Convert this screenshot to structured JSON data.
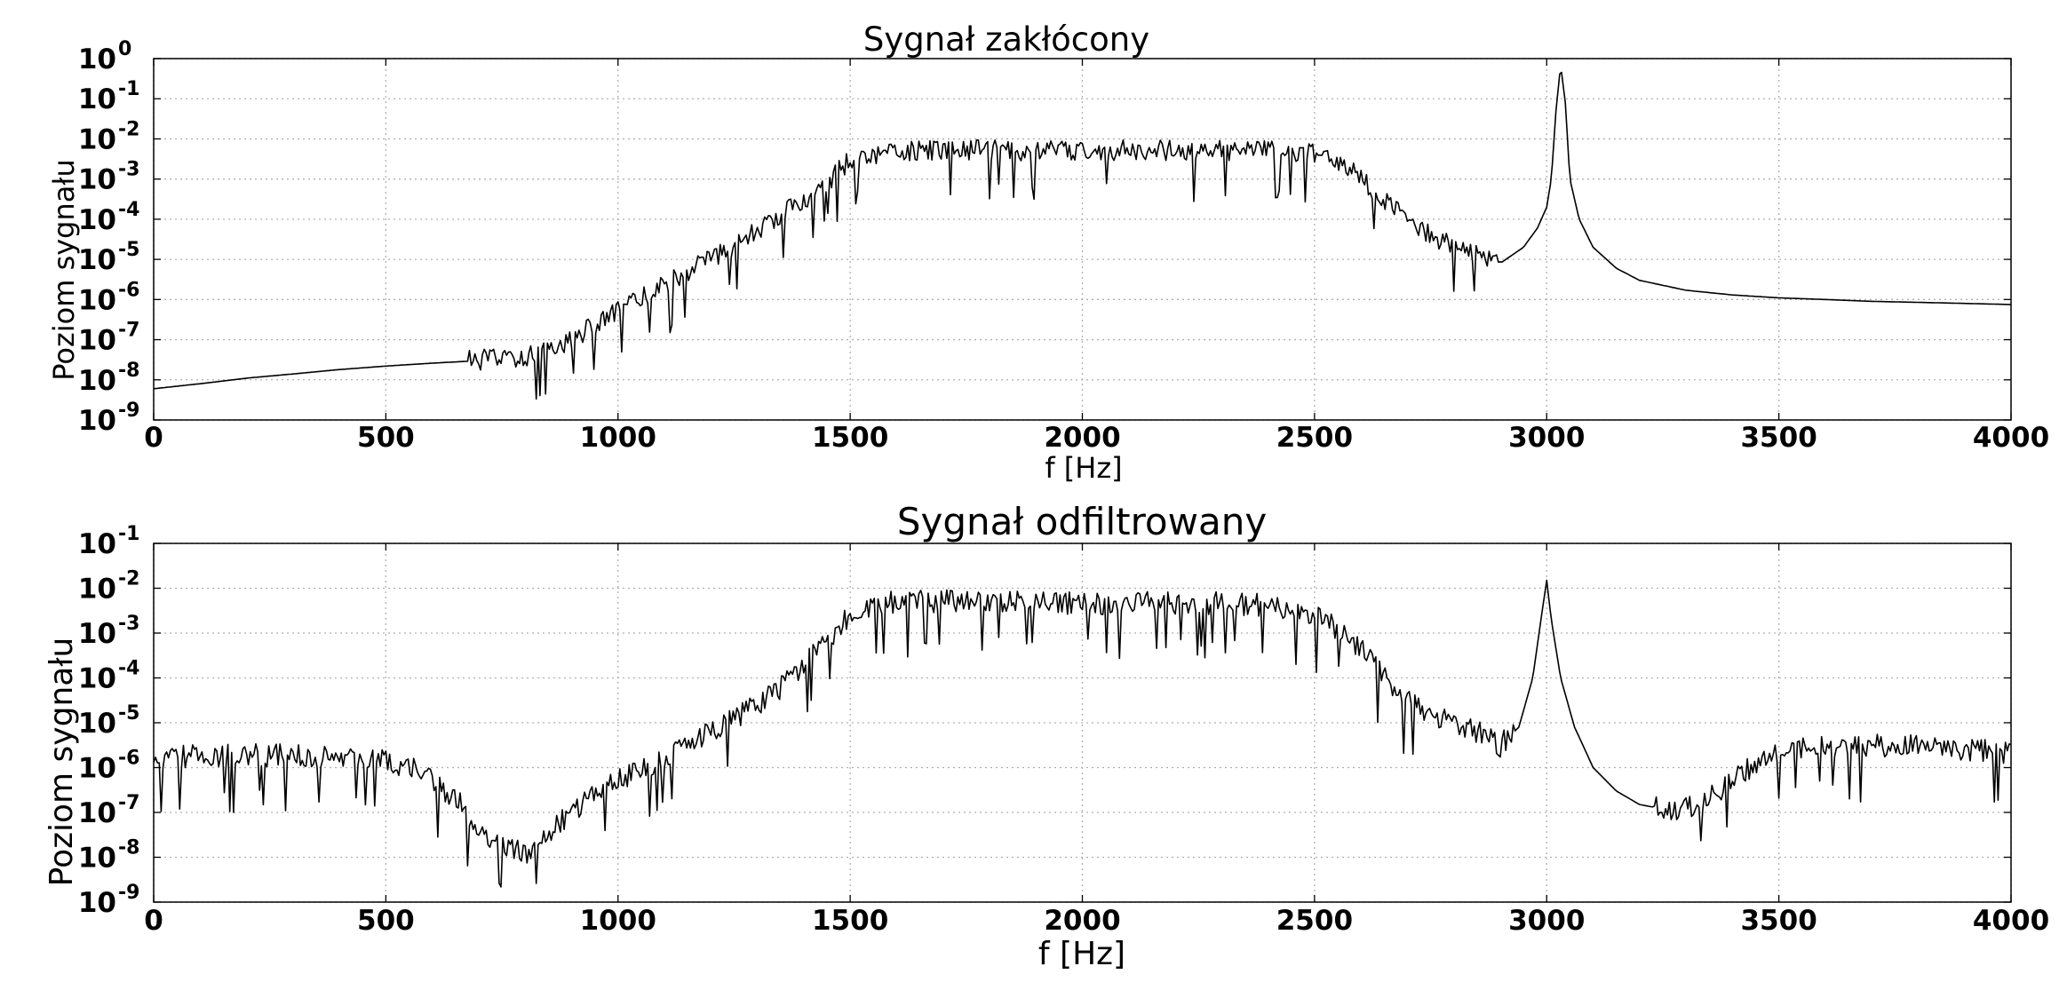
{
  "colors": {
    "line": "#000000",
    "grid": "#b0b0b0",
    "background": "#ffffff"
  },
  "chart_data": [
    {
      "type": "line",
      "title": "Sygnał zakłócony",
      "xlabel": "f [Hz]",
      "ylabel": "Poziom sygnału",
      "xlim": [
        0,
        4000
      ],
      "ylim": [
        1e-09,
        1
      ],
      "yscale": "log",
      "grid": true,
      "x_ticks": [
        "0",
        "500",
        "1000",
        "1500",
        "2000",
        "2500",
        "3000",
        "3500",
        "4000"
      ],
      "y_ticks": [
        {
          "base": "10",
          "exp": "-9"
        },
        {
          "base": "10",
          "exp": "-8"
        },
        {
          "base": "10",
          "exp": "-7"
        },
        {
          "base": "10",
          "exp": "-6"
        },
        {
          "base": "10",
          "exp": "-5"
        },
        {
          "base": "10",
          "exp": "-4"
        },
        {
          "base": "10",
          "exp": "-3"
        },
        {
          "base": "10",
          "exp": "-2"
        },
        {
          "base": "10",
          "exp": "-1"
        },
        {
          "base": "10",
          "exp": "0"
        }
      ],
      "series": [
        {
          "x": [
            0,
            100,
            200,
            300,
            400,
            500,
            600,
            700,
            750,
            800,
            850,
            900,
            950,
            1000,
            1050,
            1100,
            1150,
            1200,
            1250,
            1300,
            1350,
            1400,
            1450,
            1500,
            1600,
            1700,
            1800,
            1900,
            2000,
            2100,
            2200,
            2300,
            2400,
            2450,
            2500,
            2550,
            2600,
            2650,
            2700,
            2750,
            2800,
            2850,
            2900,
            2950,
            2980,
            3000,
            3010,
            3020,
            3030,
            3040,
            3050,
            3070,
            3100,
            3150,
            3200,
            3300,
            3400,
            3500,
            3600,
            3700,
            3800,
            3900,
            4000
          ],
          "y": [
            6e-09,
            8e-09,
            1.1e-08,
            1.4e-08,
            1.8e-08,
            2.2e-08,
            2.6e-08,
            3e-08,
            3.3e-08,
            3.8e-08,
            5e-08,
            1e-07,
            2.2e-07,
            5e-07,
            1e-06,
            2.2e-06,
            5e-06,
            1e-05,
            2e-05,
            5e-05,
            0.00012,
            0.0003,
            0.0008,
            0.003,
            0.005,
            0.005,
            0.005,
            0.005,
            0.005,
            0.005,
            0.005,
            0.005,
            0.005,
            0.004,
            0.004,
            0.0025,
            0.001,
            0.0003,
            0.0001,
            4e-05,
            2e-05,
            1.2e-05,
            8e-06,
            2e-05,
            6e-05,
            0.0002,
            0.001,
            0.05,
            0.7,
            0.08,
            0.001,
            0.0001,
            2e-05,
            6e-06,
            3e-06,
            1.7e-06,
            1.3e-06,
            1.1e-06,
            1e-06,
            9e-07,
            8.5e-07,
            8e-07,
            7.5e-07
          ],
          "noise_from": 680,
          "noise_to": 2900
        }
      ]
    },
    {
      "type": "line",
      "title": "Sygnał odfiltrowany",
      "xlabel": "f [Hz]",
      "ylabel": "Poziom sygnału",
      "xlim": [
        0,
        4000
      ],
      "ylim": [
        1e-09,
        0.1
      ],
      "yscale": "log",
      "grid": true,
      "x_ticks": [
        "0",
        "500",
        "1000",
        "1500",
        "2000",
        "2500",
        "3000",
        "3500",
        "4000"
      ],
      "y_ticks": [
        {
          "base": "10",
          "exp": "-9"
        },
        {
          "base": "10",
          "exp": "-8"
        },
        {
          "base": "10",
          "exp": "-7"
        },
        {
          "base": "10",
          "exp": "-6"
        },
        {
          "base": "10",
          "exp": "-5"
        },
        {
          "base": "10",
          "exp": "-4"
        },
        {
          "base": "10",
          "exp": "-3"
        },
        {
          "base": "10",
          "exp": "-2"
        },
        {
          "base": "10",
          "exp": "-1"
        }
      ],
      "series": [
        {
          "x": [
            0,
            100,
            200,
            300,
            400,
            500,
            550,
            600,
            650,
            700,
            750,
            800,
            850,
            900,
            950,
            1000,
            1050,
            1100,
            1150,
            1200,
            1250,
            1300,
            1350,
            1400,
            1450,
            1500,
            1600,
            1700,
            1800,
            1900,
            2000,
            2100,
            2200,
            2300,
            2400,
            2450,
            2500,
            2550,
            2600,
            2650,
            2700,
            2750,
            2800,
            2850,
            2900,
            2940,
            2970,
            2990,
            3000,
            3010,
            3030,
            3060,
            3100,
            3150,
            3200,
            3250,
            3300,
            3350,
            3400,
            3450,
            3500,
            3600,
            3700,
            3800,
            3900,
            4000
          ],
          "y": [
            1.5e-06,
            1.8e-06,
            1.8e-06,
            1.8e-06,
            1.6e-06,
            1.4e-06,
            1e-06,
            5e-07,
            2e-07,
            5e-08,
            1.5e-08,
            1.2e-08,
            3e-08,
            1e-07,
            2.5e-07,
            5e-07,
            8e-07,
            1.5e-06,
            3e-06,
            6e-06,
            1.2e-05,
            2.5e-05,
            6e-05,
            0.0002,
            0.0006,
            0.0025,
            0.005,
            0.005,
            0.005,
            0.0045,
            0.0045,
            0.0045,
            0.0045,
            0.0045,
            0.004,
            0.0035,
            0.0025,
            0.0012,
            0.0004,
            0.0001,
            3e-05,
            1.5e-05,
            1e-05,
            6e-06,
            3e-06,
            8e-06,
            0.0001,
            0.003,
            0.015,
            0.002,
            0.0001,
            8e-06,
            1e-06,
            3e-07,
            1.5e-07,
            1.2e-07,
            1.2e-07,
            2e-07,
            5e-07,
            1.2e-06,
            2e-06,
            3e-06,
            3e-06,
            3e-06,
            2.5e-06,
            2e-06
          ],
          "noise_from": 0,
          "noise_to": 2930
        },
        {
          "x": [
            3230,
            4000
          ],
          "noise_from": 3230,
          "noise_to": 4000,
          "note_ref": 0
        }
      ]
    }
  ]
}
